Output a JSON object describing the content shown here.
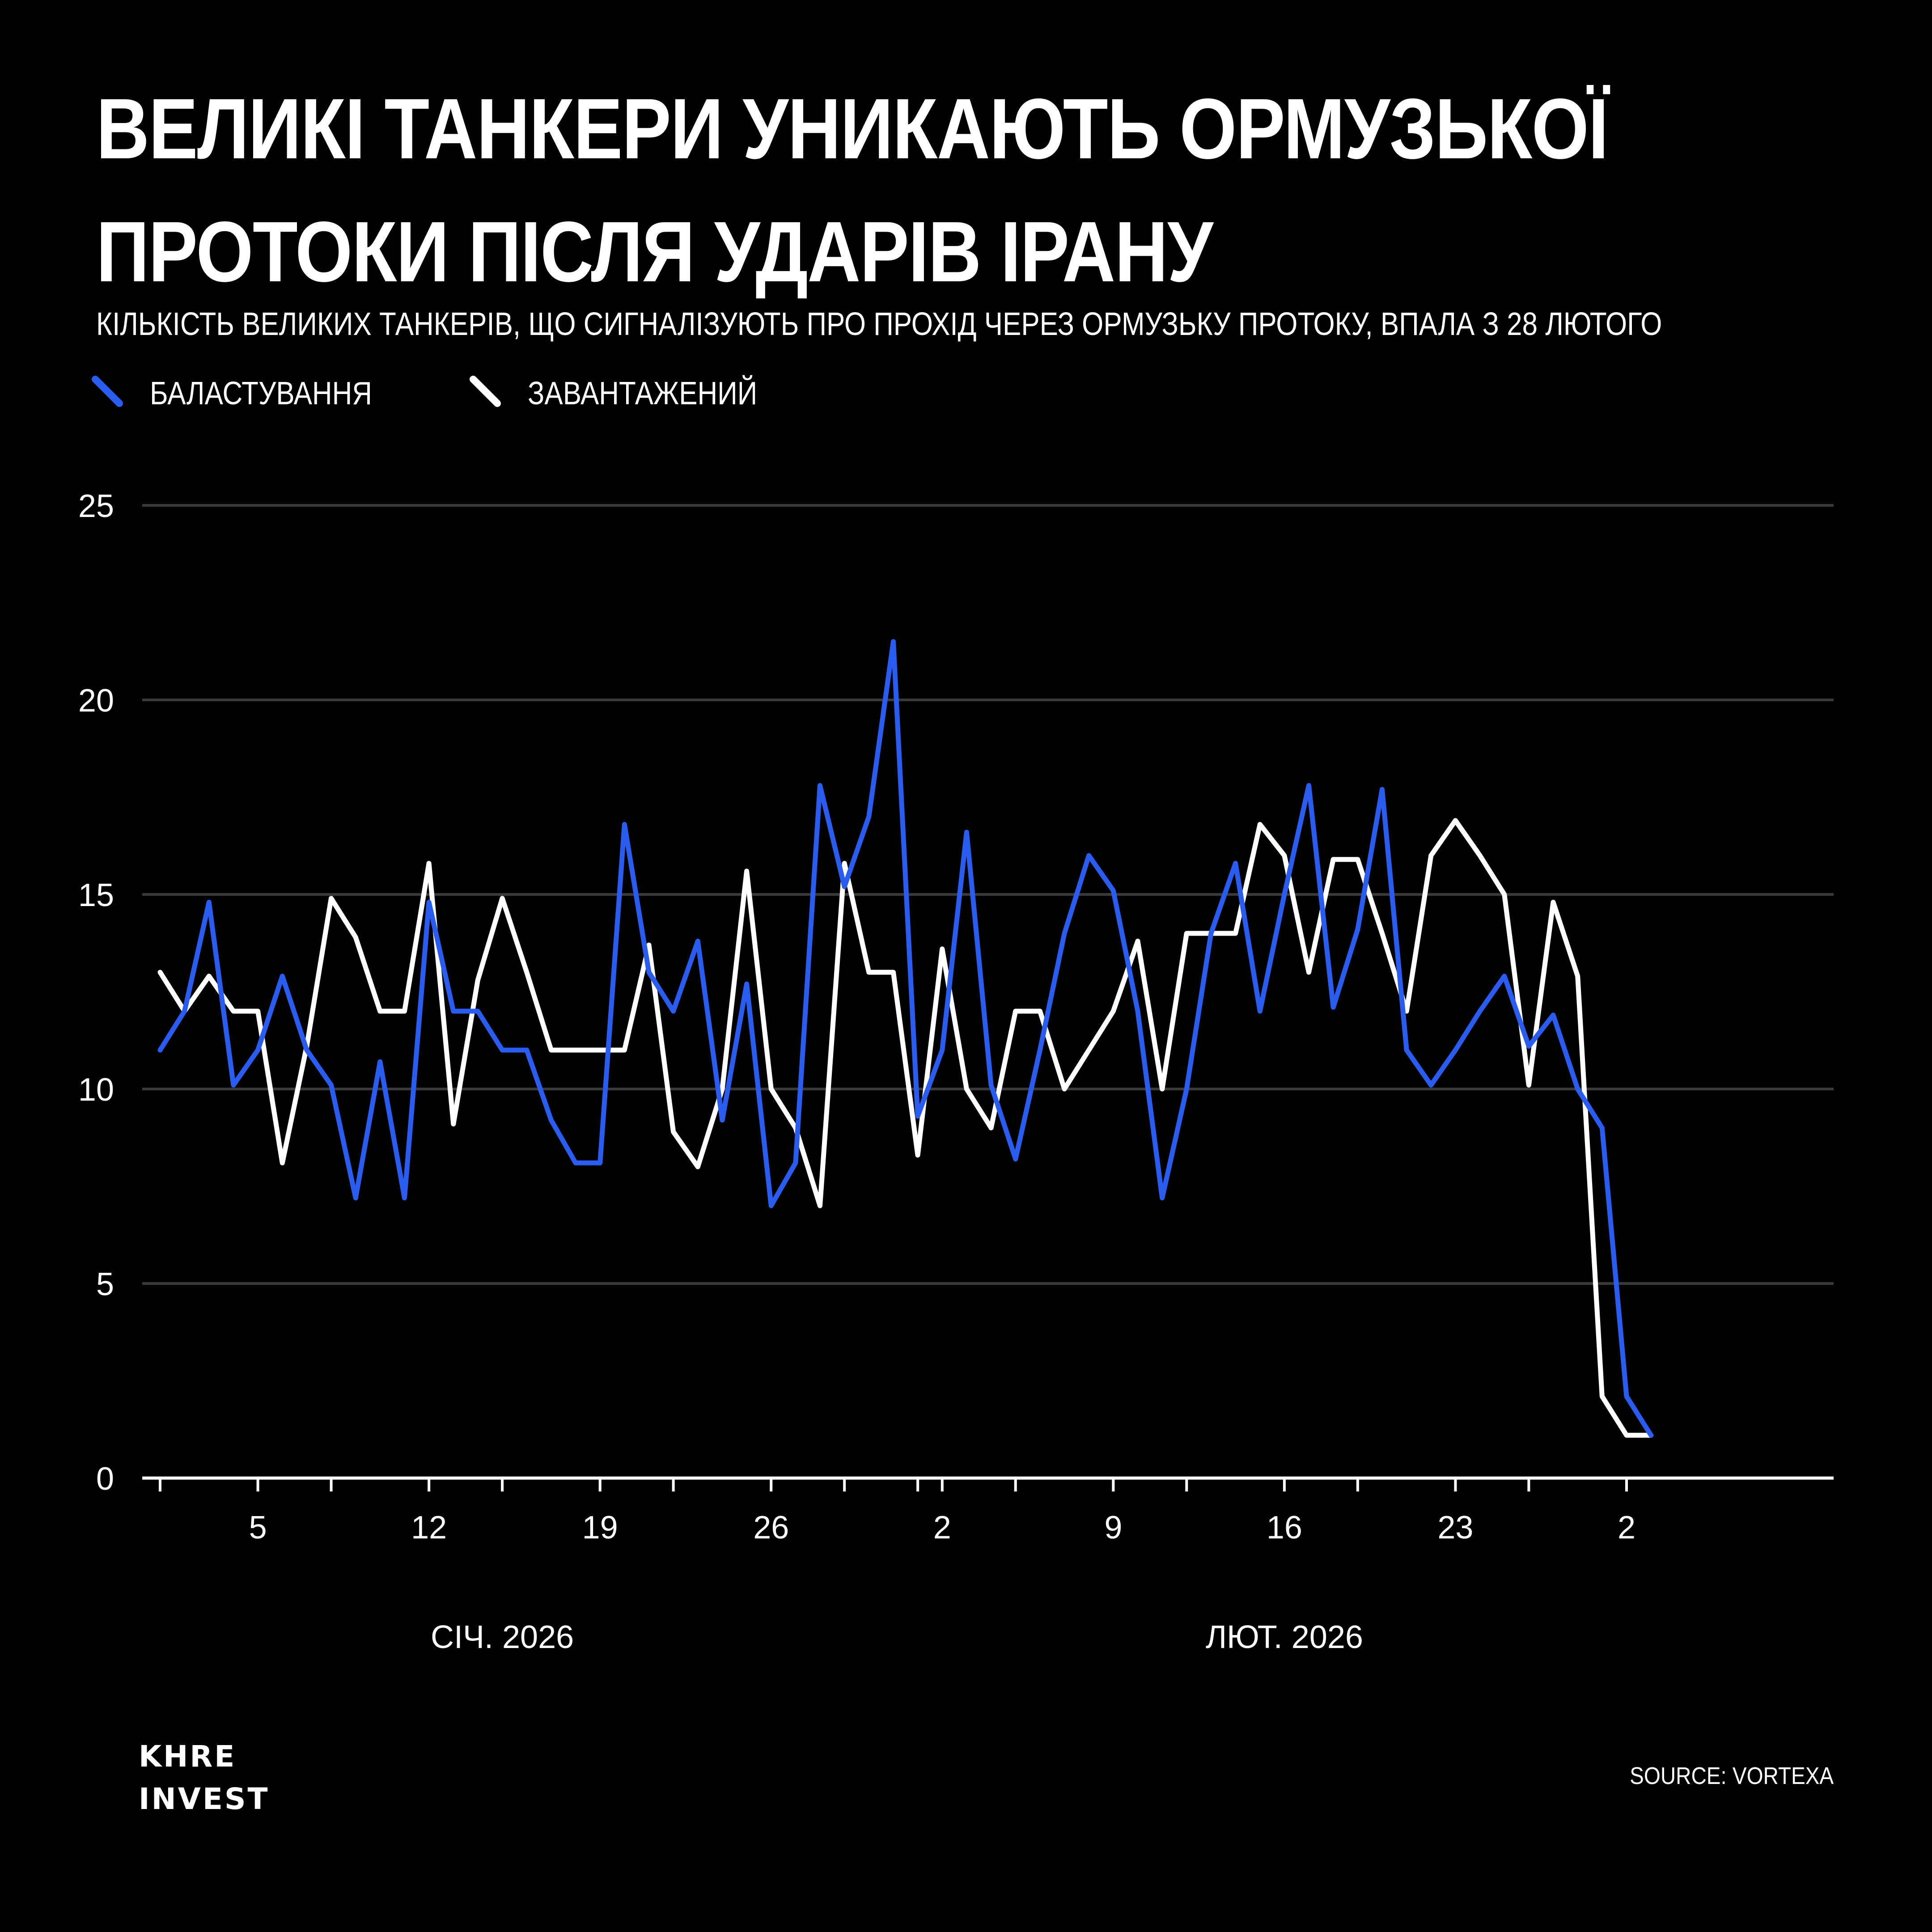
{
  "title_line1": "ВЕЛИКІ ТАНКЕРИ УНИКАЮТЬ ОРМУЗЬКОЇ",
  "title_line2": "ПРОТОКИ ПІСЛЯ УДАРІВ ІРАНУ",
  "subtitle": "КІЛЬКІСТЬ ВЕЛИКИХ ТАНКЕРІВ, ЩО СИГНАЛІЗУЮТЬ ПРО ПРОХІД ЧЕРЕЗ ОРМУЗЬКУ ПРОТОКУ, ВПАЛА З 28 ЛЮТОГО",
  "legend": [
    {
      "label": "БАЛАСТУВАННЯ",
      "color": "#2a5cf0"
    },
    {
      "label": "ЗАВАНТАЖЕНИЙ",
      "color": "#ffffff"
    }
  ],
  "logo": {
    "line1": "KHRE",
    "line2": "INVEST"
  },
  "source": "SOURCE: VORTEXA",
  "chart_data": {
    "type": "line",
    "x_start": "2026-01-01",
    "x_end": "2026-03-02",
    "x_tick_labels": [
      "5",
      "12",
      "19",
      "26",
      "2",
      "9",
      "16",
      "23",
      "2"
    ],
    "x_tick_dates": [
      "2026-01-05",
      "2026-01-12",
      "2026-01-19",
      "2026-01-26",
      "2026-02-02",
      "2026-02-09",
      "2026-02-16",
      "2026-02-23",
      "2026-03-02"
    ],
    "month_labels": [
      {
        "label": "СІЧ. 2026",
        "date": "2026-01-15"
      },
      {
        "label": "ЛЮТ. 2026",
        "date": "2026-02-16"
      }
    ],
    "ylim": [
      0,
      25
    ],
    "yticks": [
      0,
      5,
      10,
      15,
      20,
      25
    ],
    "grid": true,
    "series": [
      {
        "name": "БАЛАСТУВАННЯ",
        "color": "#2a5cf0",
        "values": [
          11,
          12,
          14.8,
          10.1,
          11,
          12.9,
          11,
          10.1,
          7.2,
          10.7,
          7.2,
          14.8,
          12,
          12,
          11,
          11,
          9.2,
          8.1,
          8.1,
          16.8,
          13,
          12,
          13.8,
          9.2,
          12.7,
          7,
          8.1,
          17.8,
          15.2,
          17,
          21.5,
          9.3,
          11,
          16.6,
          10.1,
          8.2,
          11,
          14,
          16,
          15.1,
          12,
          7.2,
          10,
          14,
          15.8,
          12,
          15,
          17.8,
          12.1,
          14.1,
          17.7,
          11,
          10.1,
          11,
          12,
          12.9,
          11.1,
          11.9,
          10,
          9,
          2.1,
          1.1
        ]
      },
      {
        "name": "ЗАВАНТАЖЕНИЙ",
        "color": "#ffffff",
        "values": [
          13,
          12,
          12.9,
          12,
          12,
          8.1,
          11.1,
          14.9,
          13.9,
          12,
          12,
          15.8,
          9.1,
          12.8,
          14.9,
          13,
          11,
          11,
          11,
          11,
          13.7,
          8.9,
          8,
          10,
          15.6,
          10,
          9,
          7,
          15.8,
          13,
          13,
          8.3,
          13.6,
          10,
          9,
          12,
          12,
          10,
          11,
          12,
          13.8,
          10,
          14,
          14,
          14,
          16.8,
          16,
          13,
          15.9,
          15.9,
          14,
          12,
          16,
          16.9,
          16,
          15,
          10.1,
          14.8,
          12.9,
          2.1,
          1.1,
          1.1
        ]
      }
    ]
  }
}
